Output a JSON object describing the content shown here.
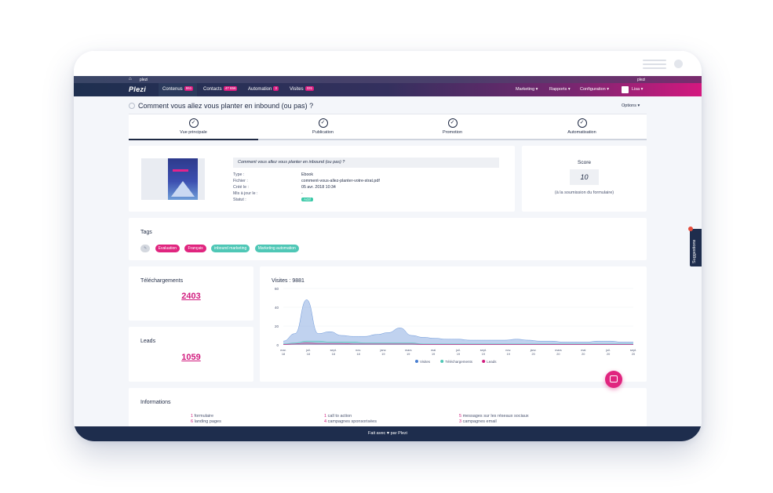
{
  "topbar": {
    "home_label": "plezi",
    "right_label": "plezi"
  },
  "nav": {
    "logo": "Plezi",
    "items": [
      {
        "label": "Contenus",
        "badge": "551"
      },
      {
        "label": "Contacts",
        "badge": "47 656"
      },
      {
        "label": "Automation",
        "badge": "3"
      },
      {
        "label": "Visites",
        "badge": "331"
      }
    ],
    "right": {
      "marketing": "Marketing",
      "rapports": "Rapports",
      "configuration": "Configuration",
      "user": "Lisa"
    }
  },
  "page": {
    "title": "Comment vous allez vous planter en inbound (ou pas) ?",
    "options": "Options"
  },
  "steps": [
    "Vue principale",
    "Publication",
    "Promotion",
    "Automatisation"
  ],
  "content": {
    "title": "Comment vous allez vous planter en inbound (ou pas) ?",
    "fields": [
      {
        "label": "Type :",
        "value": "Ebook"
      },
      {
        "label": "Fichier :",
        "value": "comment-vous-allez-planter-votre-strat.pdf"
      },
      {
        "label": "Créé le :",
        "value": "05 avr. 2018 10:34"
      },
      {
        "label": "Mis à jour le :",
        "value": "-"
      },
      {
        "label": "Statut :",
        "value": "Actif"
      }
    ]
  },
  "score": {
    "title": "Score",
    "value": "10",
    "subtitle": "(à la soumission du formulaire)"
  },
  "tags": {
    "title": "Tags",
    "items": [
      {
        "label": "Evaluation",
        "color": "#e0257f"
      },
      {
        "label": "Français",
        "color": "#e0257f"
      },
      {
        "label": "inbound marketing",
        "color": "#4fc7b6"
      },
      {
        "label": "Marketing automation",
        "color": "#4fc7b6"
      }
    ]
  },
  "stats": {
    "downloads": {
      "label": "Téléchargements",
      "value": "2403"
    },
    "leads": {
      "label": "Leads",
      "value": "1059"
    }
  },
  "chart_data": {
    "type": "area",
    "title": "Visites : 9881",
    "y_ticks": [
      "60",
      "40",
      "20",
      "0"
    ],
    "ylim": [
      0,
      60
    ],
    "x_labels": [
      [
        "mar.",
        "18"
      ],
      [
        "juil.",
        "18"
      ],
      [
        "sept.",
        "18"
      ],
      [
        "nov.",
        "18"
      ],
      [
        "janv.",
        "19"
      ],
      [
        "mars",
        "19"
      ],
      [
        "mai",
        "19"
      ],
      [
        "juil.",
        "19"
      ],
      [
        "sept.",
        "19"
      ],
      [
        "nov.",
        "19"
      ],
      [
        "janv.",
        "20"
      ],
      [
        "mars",
        "20"
      ],
      [
        "mai",
        "20"
      ],
      [
        "juil.",
        "20"
      ],
      [
        "sept.",
        "20"
      ]
    ],
    "series": [
      {
        "name": "Visites",
        "color": "#4a7fd1",
        "values": [
          4,
          12,
          48,
          12,
          14,
          10,
          9,
          9,
          11,
          13,
          18,
          10,
          8,
          7,
          6,
          6,
          5,
          5,
          5,
          5,
          6,
          5,
          4,
          4,
          3,
          3,
          3,
          4,
          4,
          3,
          3
        ]
      },
      {
        "name": "Téléchargements",
        "color": "#4fc7b6",
        "values": [
          1,
          2,
          4,
          4,
          3,
          3,
          3,
          2,
          2,
          2,
          2,
          2,
          1,
          1,
          1,
          1,
          1,
          1,
          1,
          1,
          1,
          1,
          1,
          1,
          1,
          1,
          1,
          1,
          1,
          1,
          1
        ]
      },
      {
        "name": "Leads",
        "color": "#d11b7e",
        "values": [
          0.5,
          1,
          2,
          1.5,
          1.5,
          1.5,
          1,
          1,
          1,
          1,
          1,
          1,
          0.5,
          0.5,
          0.5,
          0.5,
          0.5,
          0.5,
          0.5,
          0.5,
          0.5,
          0.5,
          0.5,
          0.5,
          0.5,
          0.5,
          0.5,
          0.5,
          0.5,
          0.5,
          0.5
        ]
      }
    ]
  },
  "informations": {
    "title": "Informations",
    "items": [
      {
        "count": "1",
        "label": "formulaire"
      },
      {
        "count": "6",
        "label": "landing pages"
      },
      {
        "count": "1",
        "label": "call to action"
      },
      {
        "count": "4",
        "label": "campagnes sponsorisées"
      },
      {
        "count": "5",
        "label": "messages sur les réseaux sociaux"
      },
      {
        "count": "3",
        "label": "campagnes email"
      }
    ]
  },
  "footer": {
    "before": "Fait avec",
    "after": "par Plezi"
  },
  "suggestions": {
    "label": "Suggestions"
  }
}
